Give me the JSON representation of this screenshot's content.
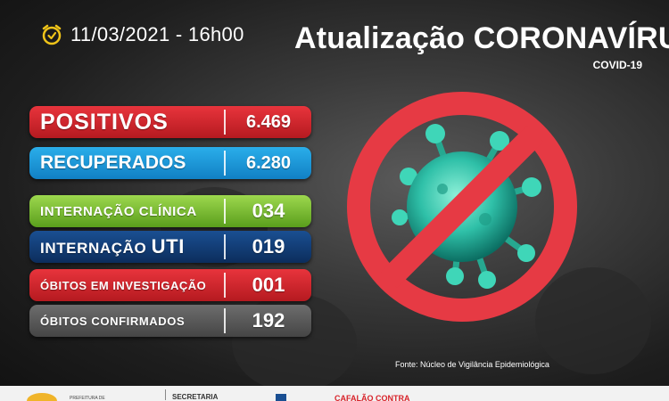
{
  "header": {
    "date_time": "11/03/2021 - 16h00",
    "title": "Atualização CORONAVÍRUS",
    "subtitle": "COVID-19"
  },
  "stats": {
    "positivos": {
      "label": "POSITIVOS",
      "value": "6.469"
    },
    "recuperados": {
      "label": "RECUPERADOS",
      "value": "6.280"
    },
    "internacao_clinica": {
      "label": "INTERNAÇÃO CLÍNICA",
      "value": "034"
    },
    "internacao_uti": {
      "label_prefix": "INTERNAÇÃO",
      "label_suffix": "UTI",
      "value": "019"
    },
    "obitos_investigacao": {
      "label": "ÓBITOS EM INVESTIGAÇÃO",
      "value": "001"
    },
    "obitos_confirmados": {
      "label": "ÓBITOS CONFIRMADOS",
      "value": "192"
    }
  },
  "source": "Fonte: Núcleo de Vigilância Epidemiológica",
  "footer": {
    "text1": "PREFEITURA DE",
    "text2": "SECRETARIA",
    "text3": "CAFALÃO CONTRA"
  },
  "colors": {
    "red": "#d8232a",
    "blue": "#1b95d8",
    "green": "#7ac142",
    "navy": "#15407a",
    "gray": "#5a5a5a",
    "clock_yellow": "#f0c419",
    "virus_teal": "#2fc0a8"
  },
  "icons": [
    "alarm-clock-icon",
    "prohibited-virus-icon"
  ]
}
